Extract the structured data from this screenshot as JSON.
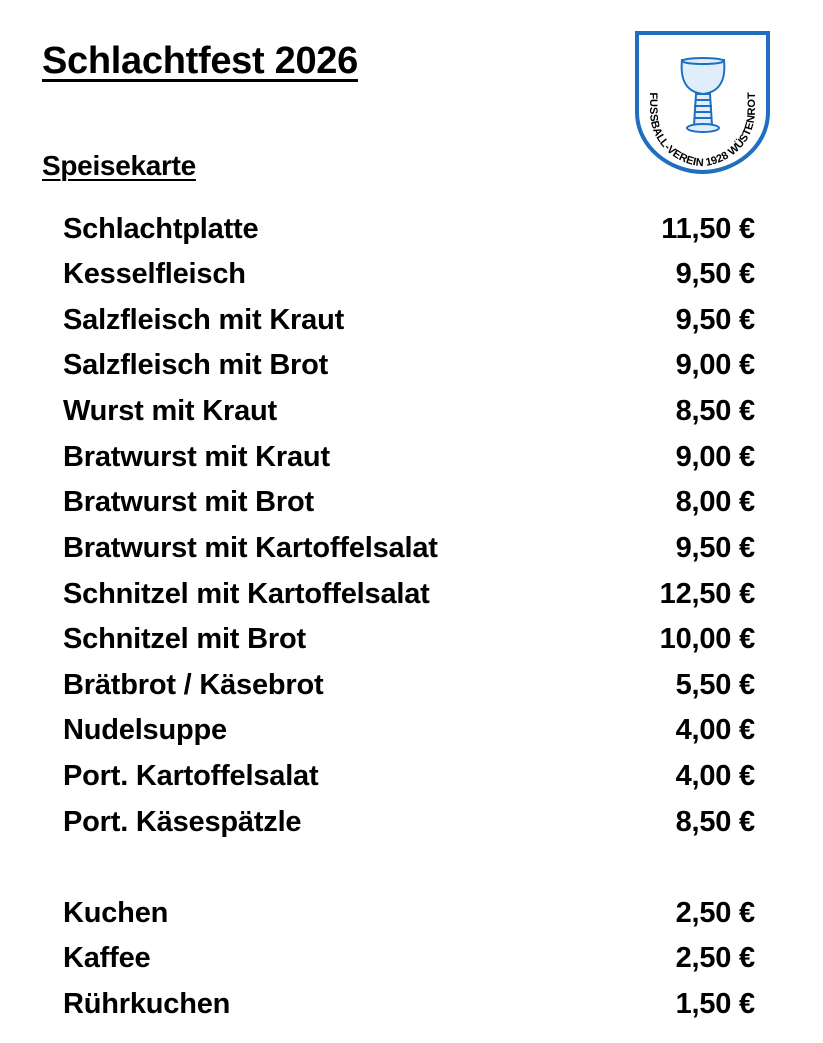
{
  "title": "Schlachtfest 2026",
  "subtitle": "Speisekarte",
  "logo": {
    "text_left": "FUSSBALL-VEREIN 1928 WÜSTENROT",
    "color": "#1f6fc0",
    "icon": "goblet-icon"
  },
  "menu": [
    {
      "name": "Schlachtplatte",
      "price": "11,50 €"
    },
    {
      "name": "Kesselfleisch",
      "price": "9,50 €"
    },
    {
      "name": "Salzfleisch mit Kraut",
      "price": "9,50 €"
    },
    {
      "name": "Salzfleisch mit Brot",
      "price": "9,00 €"
    },
    {
      "name": "Wurst mit Kraut",
      "price": "8,50 €"
    },
    {
      "name": "Bratwurst mit Kraut",
      "price": "9,00 €"
    },
    {
      "name": "Bratwurst mit Brot",
      "price": "8,00 €"
    },
    {
      "name": "Bratwurst mit Kartoffelsalat",
      "price": "9,50 €"
    },
    {
      "name": "Schnitzel mit Kartoffelsalat",
      "price": "12,50 €"
    },
    {
      "name": "Schnitzel mit Brot",
      "price": "10,00 €"
    },
    {
      "name": "Brätbrot / Käsebrot",
      "price": "5,50 €"
    },
    {
      "name": "Nudelsuppe",
      "price": "4,00 €"
    },
    {
      "name": "Port. Kartoffelsalat",
      "price": "4,00 €"
    },
    {
      "name": "Port. Käsespätzle",
      "price": "8,50 €"
    }
  ],
  "extras": [
    {
      "name": "Kuchen",
      "price": "2,50 €"
    },
    {
      "name": "Kaffee",
      "price": "2,50 €"
    },
    {
      "name": "Rührkuchen",
      "price": "1,50 €"
    }
  ]
}
